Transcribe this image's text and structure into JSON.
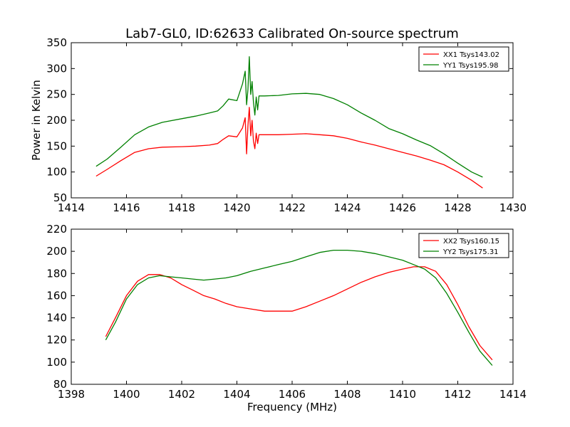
{
  "figure_title": "Lab7-GL0, ID:62633 Calibrated On-source spectrum",
  "xlabel": "Frequency (MHz)",
  "chart_data": [
    {
      "type": "line",
      "title": "Lab7-GL0, ID:62633 Calibrated On-source spectrum",
      "xlabel": "",
      "ylabel": "Power in Kelvin",
      "xlim": [
        1414,
        1430
      ],
      "ylim": [
        50,
        350
      ],
      "xticks": [
        1414,
        1416,
        1418,
        1420,
        1422,
        1424,
        1426,
        1428,
        1430
      ],
      "yticks": [
        50,
        100,
        150,
        200,
        250,
        300,
        350
      ],
      "grid": false,
      "legend_position": "top-right",
      "series": [
        {
          "name": "XX1 Tsys143.02",
          "color": "#ff0000",
          "x": [
            1414.9,
            1415.3,
            1415.8,
            1416.3,
            1416.8,
            1417.3,
            1418.0,
            1418.5,
            1419.0,
            1419.3,
            1419.5,
            1419.7,
            1420.0,
            1420.2,
            1420.3,
            1420.35,
            1420.4,
            1420.45,
            1420.5,
            1420.55,
            1420.6,
            1420.65,
            1420.7,
            1420.75,
            1420.8,
            1421.0,
            1421.5,
            1422.0,
            1422.5,
            1423.0,
            1423.5,
            1424.0,
            1424.5,
            1425.0,
            1425.5,
            1426.0,
            1426.5,
            1427.0,
            1427.5,
            1428.0,
            1428.5,
            1428.9
          ],
          "y": [
            92,
            105,
            122,
            138,
            145,
            148,
            149,
            150,
            152,
            155,
            163,
            170,
            168,
            185,
            205,
            135,
            190,
            225,
            170,
            200,
            160,
            145,
            175,
            155,
            172,
            172,
            172,
            173,
            174,
            172,
            170,
            165,
            158,
            152,
            145,
            138,
            131,
            123,
            114,
            100,
            84,
            69
          ]
        },
        {
          "name": "YY1 Tsys195.98",
          "color": "#008000",
          "x": [
            1414.9,
            1415.3,
            1415.8,
            1416.3,
            1416.8,
            1417.3,
            1418.0,
            1418.5,
            1419.0,
            1419.3,
            1419.5,
            1419.7,
            1420.0,
            1420.2,
            1420.3,
            1420.35,
            1420.4,
            1420.45,
            1420.5,
            1420.55,
            1420.6,
            1420.65,
            1420.7,
            1420.75,
            1420.8,
            1421.0,
            1421.5,
            1422.0,
            1422.5,
            1423.0,
            1423.5,
            1424.0,
            1424.5,
            1425.0,
            1425.5,
            1426.0,
            1426.5,
            1427.0,
            1427.5,
            1428.0,
            1428.5,
            1428.9
          ],
          "y": [
            111,
            125,
            148,
            172,
            187,
            196,
            203,
            208,
            214,
            218,
            228,
            241,
            238,
            270,
            295,
            230,
            260,
            323,
            250,
            275,
            235,
            210,
            245,
            220,
            247,
            247,
            248,
            251,
            252,
            250,
            242,
            230,
            214,
            200,
            184,
            174,
            162,
            151,
            135,
            117,
            100,
            90
          ]
        }
      ]
    },
    {
      "type": "line",
      "title": "",
      "xlabel": "Frequency (MHz)",
      "ylabel": "",
      "xlim": [
        1398,
        1414
      ],
      "ylim": [
        80,
        220
      ],
      "xticks": [
        1398,
        1400,
        1402,
        1404,
        1406,
        1408,
        1410,
        1412,
        1414
      ],
      "yticks": [
        80,
        100,
        120,
        140,
        160,
        180,
        200,
        220
      ],
      "grid": false,
      "legend_position": "top-right",
      "series": [
        {
          "name": "XX2 Tsys160.15",
          "color": "#ff0000",
          "x": [
            1399.25,
            1399.6,
            1400.0,
            1400.4,
            1400.8,
            1401.2,
            1401.6,
            1402.0,
            1402.4,
            1402.8,
            1403.2,
            1403.6,
            1404.0,
            1404.5,
            1405.0,
            1405.5,
            1406.0,
            1406.5,
            1407.0,
            1407.5,
            1408.0,
            1408.5,
            1409.0,
            1409.5,
            1410.0,
            1410.4,
            1410.8,
            1411.2,
            1411.6,
            1412.0,
            1412.4,
            1412.8,
            1413.25
          ],
          "y": [
            123,
            140,
            160,
            173,
            179,
            179,
            176,
            170,
            165,
            160,
            157,
            153,
            150,
            148,
            146,
            146,
            146,
            150,
            155,
            160,
            166,
            172,
            177,
            181,
            184,
            186,
            186,
            182,
            170,
            152,
            132,
            115,
            102
          ]
        },
        {
          "name": "YY2 Tsys175.31",
          "color": "#008000",
          "x": [
            1399.25,
            1399.6,
            1400.0,
            1400.4,
            1400.8,
            1401.2,
            1401.6,
            1402.0,
            1402.4,
            1402.8,
            1403.2,
            1403.6,
            1404.0,
            1404.5,
            1405.0,
            1405.5,
            1406.0,
            1406.5,
            1407.0,
            1407.5,
            1408.0,
            1408.5,
            1409.0,
            1409.5,
            1410.0,
            1410.4,
            1410.8,
            1411.2,
            1411.6,
            1412.0,
            1412.4,
            1412.8,
            1413.25
          ],
          "y": [
            120,
            136,
            157,
            170,
            176,
            178,
            177,
            176,
            175,
            174,
            175,
            176,
            178,
            182,
            185,
            188,
            191,
            195,
            199,
            201,
            201,
            200,
            198,
            195,
            192,
            188,
            184,
            176,
            162,
            145,
            127,
            110,
            97
          ]
        }
      ]
    }
  ]
}
